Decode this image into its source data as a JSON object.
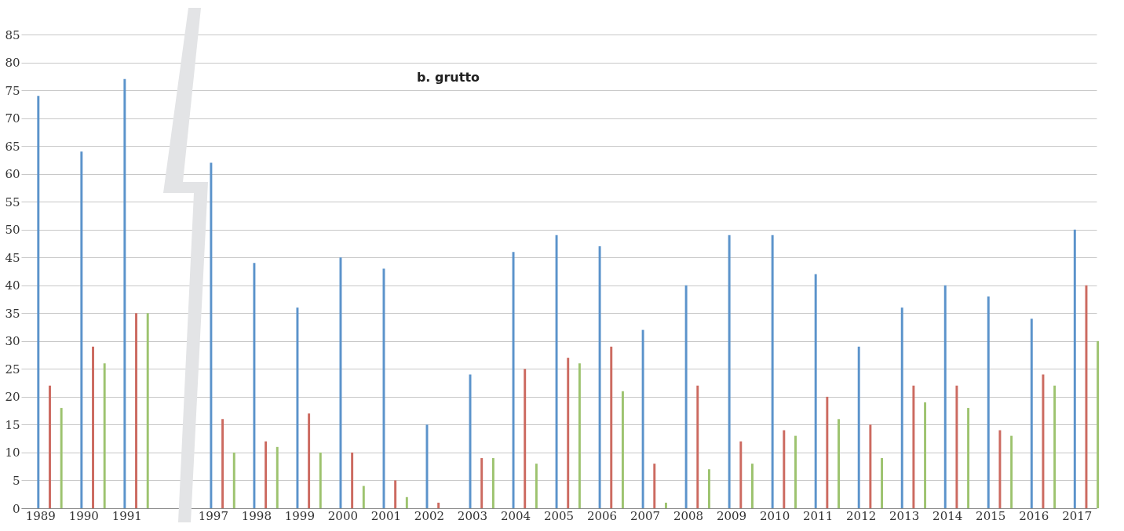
{
  "chart_data": {
    "type": "bar",
    "title": "b. grutto",
    "categories": [
      "1989",
      "1990",
      "1991",
      null,
      "1997",
      "1998",
      "1999",
      "2000",
      "2001",
      "2002",
      "2003",
      "2004",
      "2005",
      "2006",
      "2007",
      "2008",
      "2009",
      "2010",
      "2011",
      "2012",
      "2013",
      "2014",
      "2015",
      "2016",
      "2017"
    ],
    "series": [
      {
        "color": "#5b93cb",
        "values": [
          74,
          64,
          77,
          null,
          62,
          44,
          36,
          45,
          43,
          15,
          24,
          46,
          49,
          47,
          32,
          40,
          49,
          49,
          42,
          29,
          36,
          40,
          38,
          34,
          50
        ]
      },
      {
        "color": "#cc6a60",
        "values": [
          22,
          29,
          35,
          null,
          16,
          12,
          17,
          10,
          5,
          1,
          9,
          25,
          27,
          29,
          8,
          22,
          12,
          14,
          20,
          15,
          22,
          22,
          14,
          24,
          40
        ]
      },
      {
        "color": "#9dc36f",
        "values": [
          18,
          26,
          35,
          null,
          10,
          11,
          10,
          4,
          2,
          0,
          9,
          8,
          26,
          21,
          1,
          7,
          8,
          13,
          16,
          9,
          19,
          18,
          13,
          22,
          30
        ]
      }
    ],
    "ylim": [
      0,
      85
    ],
    "yticks": [
      0,
      5,
      10,
      15,
      20,
      25,
      30,
      35,
      40,
      45,
      50,
      55,
      60,
      65,
      70,
      75,
      80,
      85
    ],
    "grid": "y"
  }
}
